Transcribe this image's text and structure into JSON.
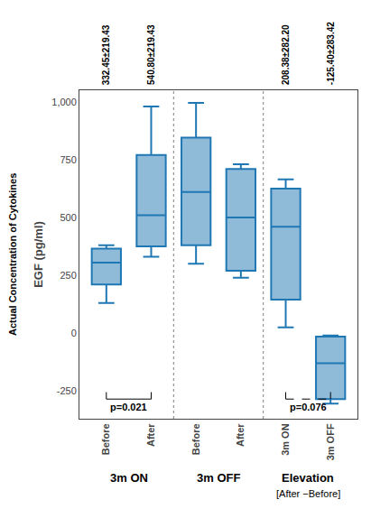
{
  "chart_data": {
    "type": "box",
    "ylabel": "EGF (pg/ml)",
    "ylabel2": "Actual Concentration of Cytokines",
    "categories": [
      "Before",
      "After",
      "Before",
      "After",
      "3m ON",
      "3m OFF"
    ],
    "q1": [
      210,
      375,
      380,
      270,
      145,
      -285
    ],
    "median": [
      305,
      510,
      610,
      500,
      460,
      -130
    ],
    "q3": [
      365,
      770,
      845,
      710,
      625,
      -15
    ],
    "whislo": [
      130,
      330,
      300,
      240,
      25,
      -305
    ],
    "whishi": [
      380,
      980,
      995,
      730,
      665,
      -10
    ],
    "ylim": [
      -370,
      1050
    ],
    "yticks": [
      -250,
      0,
      250,
      500,
      750,
      {
        "value": 1000,
        "label": "1,000"
      }
    ],
    "grid": false,
    "annotations": [
      {
        "text": "332.45±219.43",
        "category": 0
      },
      {
        "text": "540.80±219.43",
        "category": 1
      },
      {
        "text": "208.38±282.20",
        "category": 4
      },
      {
        "text": "-125.40±283.42",
        "category": 5
      }
    ],
    "group_labels": [
      {
        "text": "3m ON",
        "categories": [
          0,
          1
        ]
      },
      {
        "text": "3m OFF",
        "categories": [
          2,
          3
        ]
      },
      {
        "text": "Elevation",
        "subtext": "[After −Before]",
        "categories": [
          4,
          5
        ]
      }
    ],
    "brackets": [
      {
        "categories": [
          0,
          1
        ],
        "y_top": -255,
        "y_bottom": -285,
        "line_style": "solid",
        "text": "p=0.021",
        "text_y": -290
      },
      {
        "categories": [
          4,
          5
        ],
        "y_top": -255,
        "y_bottom": -285,
        "line_style": "dashed",
        "text": "p=0.076",
        "text_y": -290
      }
    ]
  }
}
